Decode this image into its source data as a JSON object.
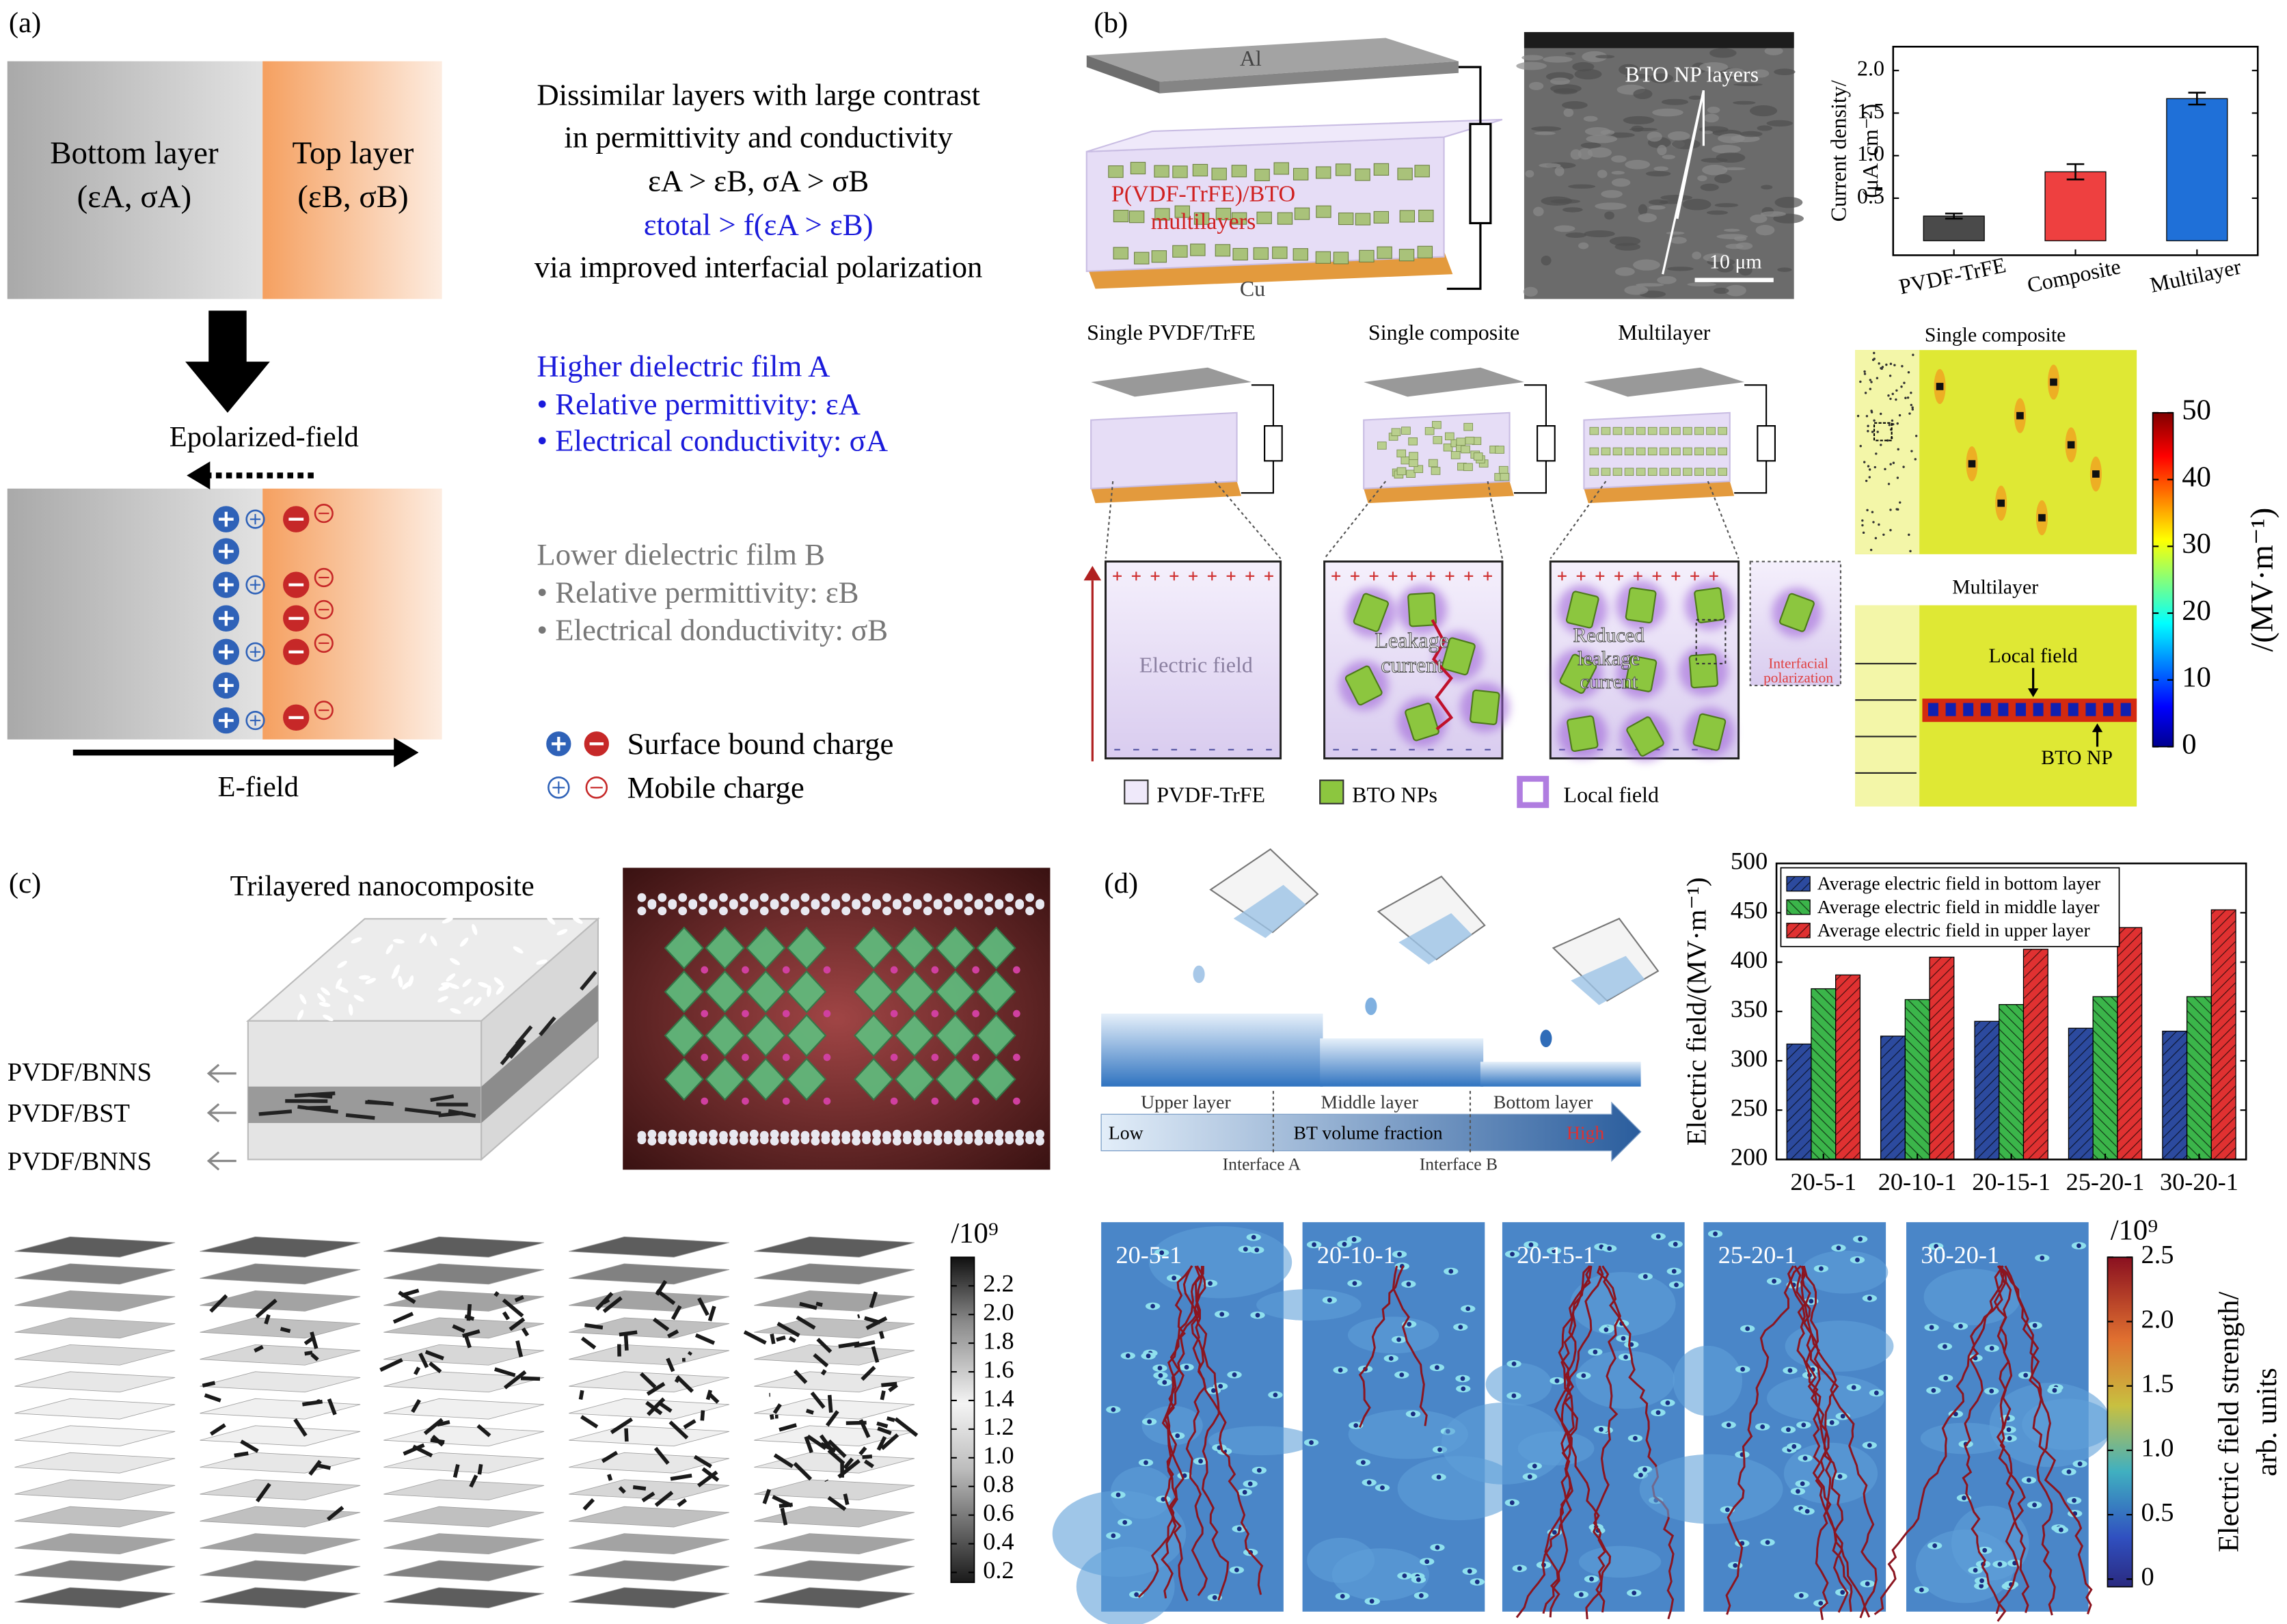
{
  "panel_a": {
    "label": "(a)",
    "bottom_layer": "Bottom layer",
    "bottom_params": "(εA, σA)",
    "top_layer": "Top layer",
    "top_params": "(εB, σB)",
    "description": [
      "Dissimilar layers with large contrast",
      "in permittivity and conductivity",
      "εA > εB, σA > σB",
      "εtotal > f(εA > εB)",
      "via improved interfacial polarization"
    ],
    "polarized_field": "Epolarized-field",
    "e_field": "E-field",
    "film_a": [
      "Higher dielectric film A",
      "• Relative permittivity: εA",
      "• Electrical conductivity: σA"
    ],
    "film_b": [
      "Lower dielectric film B",
      "• Relative permittivity: εB",
      "• Electrical donductivity: σB"
    ],
    "legend": [
      "Surface bound charge",
      "Mobile charge"
    ]
  },
  "panel_b": {
    "label": "(b)",
    "electrode_top": "Al",
    "electrode_bottom": "Cu",
    "device": [
      "P(VDF-TrFE)/BTO",
      "multilayers"
    ],
    "sem_annotation": "BTO NP layers",
    "scale_bar": "10 μm",
    "devices": [
      "Single PVDF/TrFE",
      "Single composite",
      "Multilayer"
    ],
    "box1": "Electric field",
    "box2": [
      "Leakage",
      "current"
    ],
    "box3": [
      "Reduced",
      "leakage",
      "current"
    ],
    "inset": [
      "Interfacial",
      "polarization"
    ],
    "legend": [
      "PVDF-TrFE",
      "BTO NPs",
      "Local field"
    ],
    "sim_titles": [
      "Single composite",
      "Multilayer"
    ],
    "sim_annotations": [
      "Local field",
      "BTO NP"
    ]
  },
  "panel_c": {
    "label": "(c)",
    "title": "Trilayered nanocomposite",
    "layers": [
      "PVDF/BNNS",
      "PVDF/BST",
      "PVDF/BNNS"
    ]
  },
  "panel_d": {
    "label": "(d)",
    "layers": [
      "Upper layer",
      "Middle layer",
      "Bottom layer"
    ],
    "scale": [
      "Low",
      "BT volume fraction",
      "High"
    ],
    "interfaces": [
      "Interface A",
      "Interface B"
    ],
    "simulations": [
      "20-5-1",
      "20-10-1",
      "20-15-1",
      "25-20-1",
      "30-20-1"
    ]
  },
  "chart_data": [
    {
      "type": "bar",
      "ylabel": [
        "Current density/",
        "(μA·cm⁻²)"
      ],
      "categories": [
        "PVDF-TrFE",
        "Composite",
        "Multilayer"
      ],
      "values": [
        0.29,
        0.81,
        1.67
      ],
      "errors": [
        0.03,
        0.09,
        0.07
      ],
      "colors": [
        "#4a4a4a",
        "#ee4040",
        "#1f70d8"
      ],
      "ylim": [
        -0.17,
        2.28
      ],
      "yticks": [
        0.5,
        {
          "value": 1,
          "label": "1.0"
        },
        1.5,
        {
          "value": 2,
          "label": "2.0"
        }
      ]
    },
    {
      "type": "bar",
      "ylabel": "Electric field/(MV·m⁻¹)",
      "categories": [
        "20-5-1",
        "20-10-1",
        "20-15-1",
        "25-20-1",
        "30-20-1"
      ],
      "series": [
        {
          "name": "Average electric field in bottom layer",
          "color": "#2c4a9e",
          "values": [
            317,
            325,
            340,
            333,
            330
          ]
        },
        {
          "name": "Average electric field in middle layer",
          "color": "#3bb54a",
          "values": [
            373,
            362,
            357,
            365,
            365
          ]
        },
        {
          "name": "Average electric field in upper layer",
          "color": "#e03131",
          "values": [
            387,
            405,
            413,
            435,
            453
          ]
        }
      ],
      "ylim": [
        200,
        500
      ],
      "yticks": [
        200,
        250,
        300,
        350,
        400,
        450,
        500
      ],
      "legend": "upper left",
      "hatch": true
    },
    {
      "type": "colorbar",
      "ylabel": "/(MV·m⁻¹)",
      "colormap": "jet",
      "ylim": [
        0,
        50
      ],
      "yticks": [
        0,
        10,
        20,
        30,
        40,
        50
      ]
    },
    {
      "type": "colorbar",
      "title": "/10⁹",
      "colormap": "gray",
      "ylim": [
        0.13,
        2.4
      ],
      "yticks": [
        0.2,
        0.4,
        0.6,
        0.8,
        {
          "value": 1,
          "label": "1.0"
        },
        1.2,
        1.4,
        1.6,
        1.8,
        {
          "value": 2,
          "label": "2.0"
        },
        2.2
      ]
    },
    {
      "type": "colorbar",
      "title": "/10⁹",
      "ylabel": [
        "Electric field strength/",
        "arb. units"
      ],
      "colormap": "thermal",
      "ylim": [
        -0.06,
        2.5
      ],
      "yticks": [
        0,
        0.5,
        {
          "value": 1,
          "label": "1.0"
        },
        1.5,
        {
          "value": 2,
          "label": "2.0"
        },
        2.5
      ]
    }
  ]
}
